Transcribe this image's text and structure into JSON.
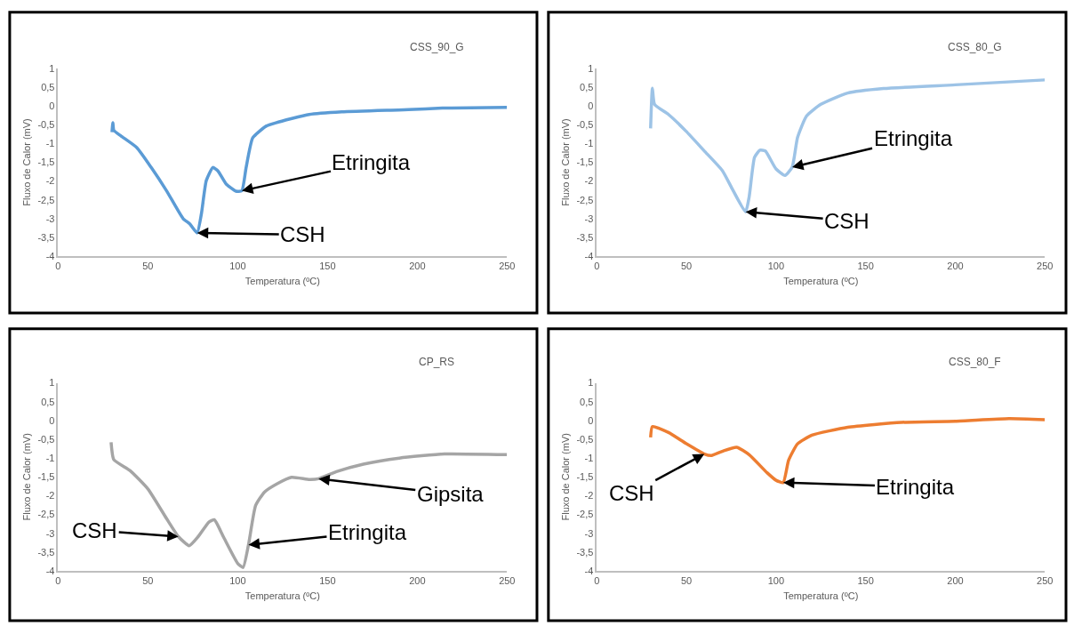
{
  "chart_data": [
    {
      "type": "line",
      "title": "CSS_90_G",
      "xlabel": "Temperatura (ºC)",
      "ylabel": "Fluxo de Calor (mV)",
      "xlim": [
        0,
        250
      ],
      "xticks": [
        0,
        50,
        100,
        150,
        200,
        250
      ],
      "ylim": [
        -4,
        1
      ],
      "yticks": [
        {
          "value": -4,
          "label": "-4"
        },
        {
          "value": -3.5,
          "label": "-3,5"
        },
        {
          "value": -3,
          "label": "-3"
        },
        {
          "value": -2.5,
          "label": "-2,5"
        },
        {
          "value": -2,
          "label": "-2"
        },
        {
          "value": -1.5,
          "label": "-1,5"
        },
        {
          "value": -1,
          "label": "-1"
        },
        {
          "value": -0.5,
          "label": "-0,5"
        },
        {
          "value": 0,
          "label": "0"
        },
        {
          "value": 0.5,
          "label": "0,5"
        },
        {
          "value": 1,
          "label": "1"
        }
      ],
      "grid": false,
      "marker": "none",
      "series": [
        {
          "color": "#5b9bd5",
          "x": [
            30,
            30.5,
            31,
            35,
            43.8,
            52,
            60.4,
            69.6,
            73.3,
            77.4,
            79.8,
            82.5,
            86.2,
            89,
            93.6,
            99,
            102.3,
            104.7,
            108.4,
            115.8,
            121.3,
            139.8,
            158,
            195,
            214,
            250
          ],
          "values": [
            -0.7,
            -0.45,
            -0.65,
            -0.8,
            -1.11,
            -1.65,
            -2.26,
            -3.0,
            -3.14,
            -3.38,
            -2.87,
            -1.99,
            -1.64,
            -1.73,
            -2.08,
            -2.27,
            -2.26,
            -1.64,
            -0.85,
            -0.54,
            -0.45,
            -0.23,
            -0.16,
            -0.1,
            -0.06,
            -0.04
          ]
        }
      ],
      "annotations": [
        {
          "text": "Etringita",
          "x": 102.3,
          "y": -2.26
        },
        {
          "text": "CSH",
          "x": 77.4,
          "y": -3.38
        }
      ]
    },
    {
      "type": "line",
      "title": "CSS_80_G",
      "xlabel": "Temperatura (ºC)",
      "ylabel": "Fluxo de Calor (mV)",
      "xlim": [
        0,
        250
      ],
      "xticks": [
        0,
        50,
        100,
        150,
        200,
        250
      ],
      "ylim": [
        -4,
        1
      ],
      "yticks": [
        {
          "value": -4,
          "label": "-4"
        },
        {
          "value": -3.5,
          "label": "-3,5"
        },
        {
          "value": -3,
          "label": "-3"
        },
        {
          "value": -2.5,
          "label": "-2,5"
        },
        {
          "value": -2,
          "label": "-2"
        },
        {
          "value": -1.5,
          "label": "-1,5"
        },
        {
          "value": -1,
          "label": "-1"
        },
        {
          "value": -0.5,
          "label": "-0,5"
        },
        {
          "value": 0,
          "label": "0"
        },
        {
          "value": 0.5,
          "label": "0,5"
        },
        {
          "value": 1,
          "label": "1"
        }
      ],
      "grid": false,
      "marker": "none",
      "series": [
        {
          "color": "#9dc3e6",
          "x": [
            30,
            31,
            32.2,
            40,
            49.7,
            59.8,
            70,
            76,
            83,
            85,
            88,
            91,
            94,
            100,
            105,
            109,
            112,
            117,
            125,
            140,
            160,
            200,
            250
          ],
          "values": [
            -0.6,
            0.47,
            0.04,
            -0.23,
            -0.67,
            -1.19,
            -1.72,
            -2.25,
            -2.82,
            -2.42,
            -1.37,
            -1.18,
            -1.2,
            -1.68,
            -1.85,
            -1.63,
            -0.84,
            -0.27,
            0.04,
            0.34,
            0.46,
            0.56,
            0.69
          ]
        }
      ],
      "annotations": [
        {
          "text": "Etringita",
          "x": 109,
          "y": -1.63
        },
        {
          "text": "CSH",
          "x": 83,
          "y": -2.82
        }
      ]
    },
    {
      "type": "line",
      "title": "CP_RS",
      "xlabel": "Temperatura (ºC)",
      "ylabel": "Fluxo de Calor (mV)",
      "xlim": [
        0,
        250
      ],
      "xticks": [
        0,
        50,
        100,
        150,
        200,
        250
      ],
      "ylim": [
        -4,
        1
      ],
      "yticks": [
        {
          "value": -4,
          "label": "-4"
        },
        {
          "value": -3.5,
          "label": "-3,5"
        },
        {
          "value": -3,
          "label": "-3"
        },
        {
          "value": -2.5,
          "label": "-2,5"
        },
        {
          "value": -2,
          "label": "-2"
        },
        {
          "value": -1.5,
          "label": "-1,5"
        },
        {
          "value": -1,
          "label": "-1"
        },
        {
          "value": -0.5,
          "label": "-0,5"
        },
        {
          "value": 0,
          "label": "0"
        },
        {
          "value": 0.5,
          "label": "0,5"
        },
        {
          "value": 1,
          "label": "1"
        }
      ],
      "grid": false,
      "marker": "none",
      "series": [
        {
          "color": "#a5a5a5",
          "x": [
            29.5,
            31,
            40,
            50,
            60.4,
            67,
            73,
            78,
            84,
            87,
            92,
            100,
            103,
            106,
            110,
            115,
            122,
            130,
            140,
            145,
            155,
            170,
            190,
            215,
            250
          ],
          "values": [
            -0.58,
            -1.04,
            -1.33,
            -1.82,
            -2.61,
            -3.09,
            -3.33,
            -3.09,
            -2.7,
            -2.64,
            -3.09,
            -3.8,
            -3.91,
            -3.31,
            -2.26,
            -1.9,
            -1.68,
            -1.51,
            -1.57,
            -1.55,
            -1.36,
            -1.16,
            -1.0,
            -0.89,
            -0.91
          ]
        }
      ],
      "annotations": [
        {
          "text": "Gipsita",
          "x": 145,
          "y": -1.55
        },
        {
          "text": "Etringita",
          "x": 106,
          "y": -3.31
        },
        {
          "text": "CSH",
          "x": 67,
          "y": -3.09
        }
      ]
    },
    {
      "type": "line",
      "title": "CSS_80_F",
      "xlabel": "Temperatura (ºC)",
      "ylabel": "Fluxo de Calor (mV)",
      "xlim": [
        0,
        250
      ],
      "xticks": [
        0,
        50,
        100,
        150,
        200,
        250
      ],
      "ylim": [
        -4,
        1
      ],
      "yticks": [
        {
          "value": -4,
          "label": "-4"
        },
        {
          "value": -3.5,
          "label": "-3,5"
        },
        {
          "value": -3,
          "label": "-3"
        },
        {
          "value": -2.5,
          "label": "-2,5"
        },
        {
          "value": -2,
          "label": "-2"
        },
        {
          "value": -1.5,
          "label": "-1,5"
        },
        {
          "value": -1,
          "label": "-1"
        },
        {
          "value": -0.5,
          "label": "-0,5"
        },
        {
          "value": 0,
          "label": "0"
        },
        {
          "value": 0.5,
          "label": "0,5"
        },
        {
          "value": 1,
          "label": "1"
        }
      ],
      "grid": false,
      "marker": "none",
      "series": [
        {
          "color": "#ed7d31",
          "x": [
            30,
            31,
            40,
            50,
            60,
            64,
            70,
            78,
            85,
            95,
            100,
            104,
            107,
            112,
            120,
            140,
            170,
            200,
            230,
            250
          ],
          "values": [
            -0.45,
            -0.16,
            -0.32,
            -0.62,
            -0.89,
            -0.93,
            -0.82,
            -0.71,
            -0.91,
            -1.39,
            -1.59,
            -1.65,
            -1.06,
            -0.62,
            -0.39,
            -0.18,
            -0.05,
            -0.02,
            0.05,
            0.02
          ]
        }
      ],
      "annotations": [
        {
          "text": "Etringita",
          "x": 104,
          "y": -1.65
        },
        {
          "text": "CSH",
          "x": 60,
          "y": -0.89
        }
      ]
    }
  ]
}
